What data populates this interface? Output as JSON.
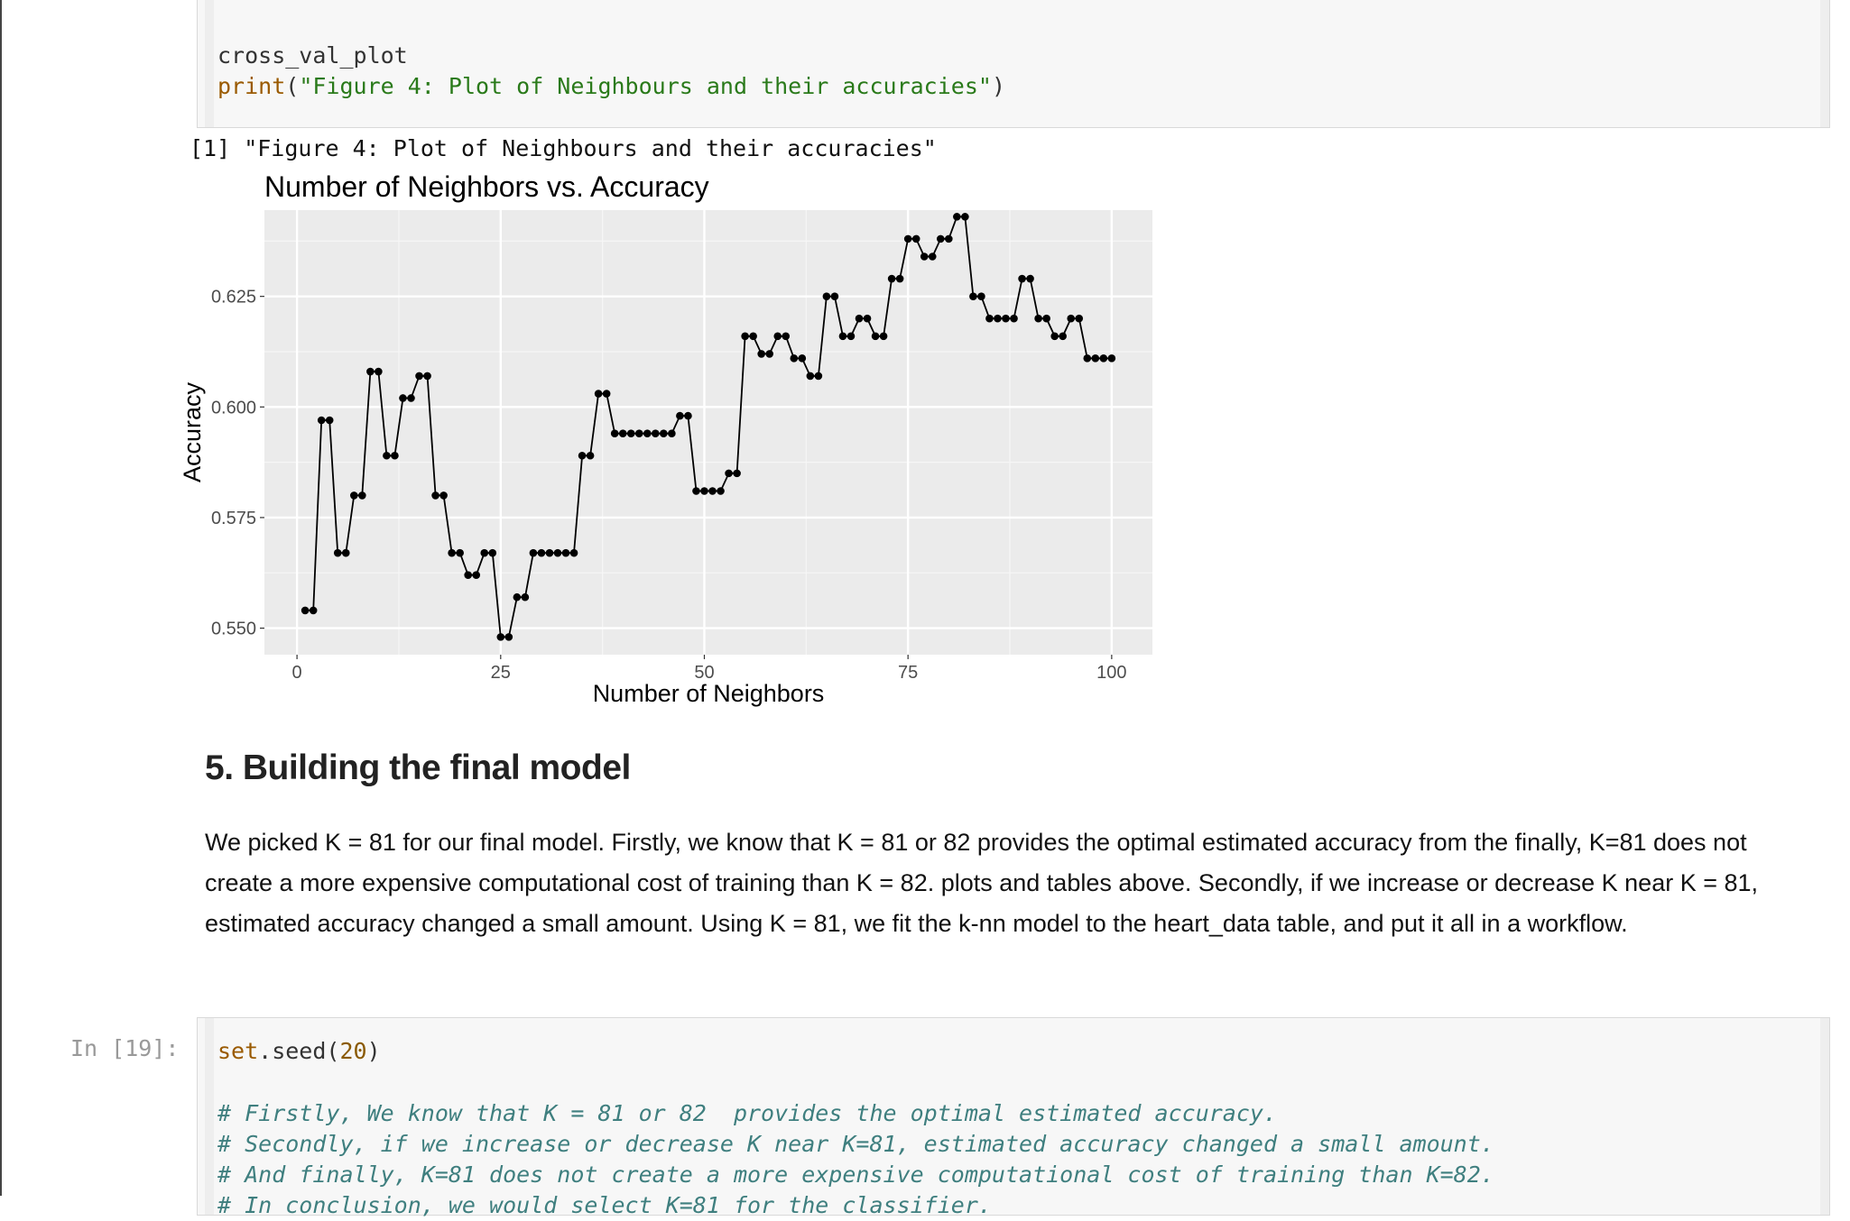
{
  "top_cell": {
    "line1": "cross_val_plot",
    "line2_fn": "print",
    "line2_paren_open": "(",
    "line2_string": "\"Figure 4: Plot of Neighbours and their accuracies\"",
    "line2_paren_close": ")"
  },
  "output": {
    "text": "[1] \"Figure 4: Plot of Neighbours and their accuracies\""
  },
  "chart_data": {
    "type": "line",
    "title": "Number of Neighbors vs. Accuracy",
    "xlabel": "Number of Neighbors",
    "ylabel": "Accuracy",
    "xlim": [
      -4,
      105
    ],
    "ylim": [
      0.544,
      0.6445
    ],
    "x_ticks": [
      0,
      25,
      50,
      75,
      100
    ],
    "x_tick_labels": [
      "0",
      "25",
      "50",
      "75",
      "100"
    ],
    "y_ticks": [
      0.55,
      0.575,
      0.6,
      0.625
    ],
    "y_tick_labels": [
      "0.550",
      "0.575",
      "0.600",
      "0.625"
    ],
    "grid": true,
    "background": "#ebebeb",
    "series": [
      {
        "markers": true,
        "x": [
          1,
          2,
          3,
          4,
          5,
          6,
          7,
          8,
          9,
          10,
          11,
          12,
          13,
          14,
          15,
          16,
          17,
          18,
          19,
          20,
          21,
          22,
          23,
          24,
          25,
          26,
          27,
          28,
          29,
          30,
          31,
          32,
          33,
          34,
          35,
          36,
          37,
          38,
          39,
          40,
          41,
          42,
          43,
          44,
          45,
          46,
          47,
          48,
          49,
          50,
          51,
          52,
          53,
          54,
          55,
          56,
          57,
          58,
          59,
          60,
          61,
          62,
          63,
          64,
          65,
          66,
          67,
          68,
          69,
          70,
          71,
          72,
          73,
          74,
          75,
          76,
          77,
          78,
          79,
          80,
          81,
          82,
          83,
          84,
          85,
          86,
          87,
          88,
          89,
          90,
          91,
          92,
          93,
          94,
          95,
          96,
          97,
          98,
          99,
          100
        ],
        "y": [
          0.554,
          0.554,
          0.597,
          0.597,
          0.567,
          0.567,
          0.58,
          0.58,
          0.608,
          0.608,
          0.589,
          0.589,
          0.602,
          0.602,
          0.607,
          0.607,
          0.58,
          0.58,
          0.567,
          0.567,
          0.562,
          0.562,
          0.567,
          0.567,
          0.548,
          0.548,
          0.557,
          0.557,
          0.567,
          0.567,
          0.567,
          0.567,
          0.567,
          0.567,
          0.589,
          0.589,
          0.603,
          0.603,
          0.594,
          0.594,
          0.594,
          0.594,
          0.594,
          0.594,
          0.594,
          0.594,
          0.598,
          0.598,
          0.581,
          0.581,
          0.581,
          0.581,
          0.585,
          0.585,
          0.616,
          0.616,
          0.612,
          0.612,
          0.616,
          0.616,
          0.611,
          0.611,
          0.607,
          0.607,
          0.625,
          0.625,
          0.616,
          0.616,
          0.62,
          0.62,
          0.616,
          0.616,
          0.629,
          0.629,
          0.638,
          0.638,
          0.634,
          0.634,
          0.638,
          0.638,
          0.643,
          0.643,
          0.625,
          0.625,
          0.62,
          0.62,
          0.62,
          0.62,
          0.629,
          0.629,
          0.62,
          0.62,
          0.616,
          0.616,
          0.62,
          0.62,
          0.611,
          0.611,
          0.611,
          0.611
        ]
      }
    ]
  },
  "section": {
    "title": "5. Building the final model",
    "paragraph": "We picked K = 81 for our final model. Firstly, we know that K = 81 or 82 provides the optimal estimated accuracy from the finally, K=81 does not create a more expensive computational cost of training than K = 82. plots and tables above. Secondly, if we increase or decrease K near K = 81, estimated accuracy changed a small amount. Using K = 81, we fit the k-nn model to the heart_data table, and put it all in a workflow."
  },
  "bottom_cell": {
    "prompt": "In [19]:",
    "line1_fn": "set",
    "line1_rest": ".seed(",
    "line1_num": "20",
    "line1_close": ")",
    "comment1": "# Firstly, We know that K = 81 or 82  provides the optimal estimated accuracy.",
    "comment2": "# Secondly, if we increase or decrease K near K=81, estimated accuracy changed a small amount.",
    "comment3": "# And finally, K=81 does not create a more expensive computational cost of training than K=82.",
    "comment4": "# In conclusion, we would select K=81 for the classifier."
  }
}
